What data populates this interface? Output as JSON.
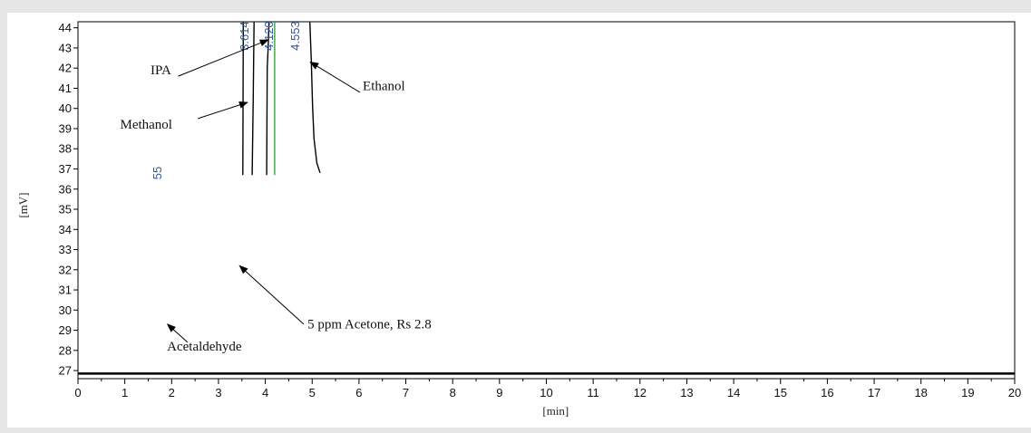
{
  "chart_data": {
    "type": "line",
    "title": "",
    "xlabel": "[min]",
    "ylabel": "[mV]",
    "xlim": [
      0,
      20
    ],
    "ylim": [
      26.6,
      44.3
    ],
    "x_ticks": [
      0,
      1,
      2,
      3,
      4,
      5,
      6,
      7,
      8,
      9,
      10,
      11,
      12,
      13,
      14,
      15,
      16,
      17,
      18,
      19,
      20
    ],
    "y_ticks": [
      27,
      28,
      29,
      30,
      31,
      32,
      33,
      34,
      35,
      36,
      37,
      38,
      39,
      40,
      41,
      42,
      43,
      44
    ],
    "grid": false,
    "legend": "none",
    "baseline_y": 26.85,
    "series": [
      {
        "color": "#000000",
        "points": [
          [
            3.52,
            36.7
          ],
          [
            3.53,
            44.3
          ]
        ]
      },
      {
        "color": "#000000",
        "points": [
          [
            3.72,
            36.7
          ],
          [
            3.74,
            40.3
          ],
          [
            3.76,
            44.3
          ]
        ]
      },
      {
        "color": "#000000",
        "points": [
          [
            4.03,
            36.7
          ],
          [
            4.04,
            42.0
          ],
          [
            4.06,
            43.0
          ],
          [
            4.08,
            44.3
          ]
        ]
      },
      {
        "color": "#3aa43a",
        "points": [
          [
            4.2,
            36.7
          ],
          [
            4.2,
            44.3
          ]
        ]
      },
      {
        "color": "#000000",
        "points": [
          [
            4.95,
            44.3
          ],
          [
            4.98,
            42.5
          ],
          [
            5.01,
            40.0
          ],
          [
            5.04,
            38.5
          ],
          [
            5.1,
            37.3
          ],
          [
            5.17,
            36.8
          ]
        ]
      }
    ],
    "peak_labels": [
      {
        "text": "3.614",
        "x": 3.64,
        "y": 43.6,
        "color": "#2f5b9e"
      },
      {
        "text": "4.120",
        "x": 4.16,
        "y": 43.6,
        "color": "#2f5b9e"
      },
      {
        "text": "4.553",
        "x": 4.72,
        "y": 43.6,
        "color": "#2f5b9e"
      },
      {
        "text": "55",
        "x": 1.78,
        "y": 36.8,
        "color": "#2f5b9e"
      }
    ],
    "annotations": [
      {
        "text": "IPA",
        "x": 1.55,
        "y": 41.7,
        "arrow_from": [
          2.14,
          41.6
        ],
        "arrow_to": [
          4.06,
          43.4
        ]
      },
      {
        "text": "Methanol",
        "x": 0.9,
        "y": 39.0,
        "arrow_from": [
          2.56,
          39.5
        ],
        "arrow_to": [
          3.62,
          40.3
        ]
      },
      {
        "text": "Ethanol",
        "x": 6.08,
        "y": 40.9,
        "arrow_from": [
          6.02,
          40.8
        ],
        "arrow_to": [
          4.96,
          42.3
        ]
      },
      {
        "text": "5 ppm Acetone, Rs 2.8",
        "x": 4.9,
        "y": 29.1,
        "arrow_from": [
          4.82,
          29.3
        ],
        "arrow_to": [
          3.45,
          32.2
        ]
      },
      {
        "text": "Acetaldehyde",
        "x": 1.9,
        "y": 28.0,
        "arrow_from": [
          2.34,
          28.4
        ],
        "arrow_to": [
          1.91,
          29.3
        ]
      }
    ]
  }
}
